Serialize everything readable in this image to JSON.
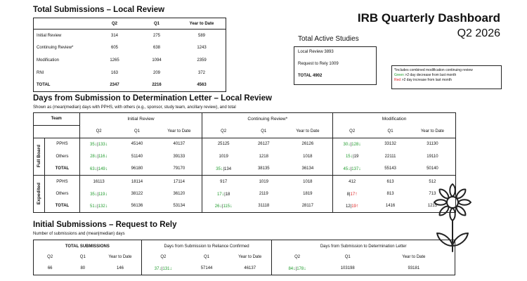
{
  "summary": {
    "title": "Total Submissions – Local Review",
    "cols": [
      "Q2",
      "Q1",
      "Year to Date"
    ],
    "rows": [
      {
        "label": "Initial Review",
        "q2": "314",
        "q1": "275",
        "ytd": "589"
      },
      {
        "label": "Continuing Review*",
        "q2": "605",
        "q1": "638",
        "ytd": "1243"
      },
      {
        "label": "Modification",
        "q2": "1265",
        "q1": "1094",
        "ytd": "2359"
      },
      {
        "label": "RNI",
        "q2": "163",
        "q1": "209",
        "ytd": "372"
      },
      {
        "label": "TOTAL",
        "q2": "2347",
        "q1": "2216",
        "ytd": "4563"
      }
    ]
  },
  "header": {
    "title": "IRB Quarterly Dashboard",
    "subtitle": "Q2 2026"
  },
  "active": {
    "title": "Total Active Studies",
    "lines": [
      "Local Review 3893",
      "Request to Rely 1009",
      "TOTAL  4902"
    ]
  },
  "legend": {
    "note": "*Includes combined modification continuing review",
    "green_word": "Green",
    "green_text": " >2 day decrease from last month",
    "red_word": "Red",
    "red_text": " >2 day increase from last month",
    "green": "#1f9b2c",
    "red": "#dd2222"
  },
  "days": {
    "title": "Days from Submission to Determination Letter – Local Review",
    "subtitle": "Shown as (mean|median) days with PPHS, with others (e.g., sponsor, study team, ancillary review), and total",
    "team_header": "Team",
    "groups": [
      "Initial Review",
      "Continuing Review*",
      "Modification"
    ],
    "cols": [
      "Q2",
      "Q1",
      "Year to Date"
    ],
    "sections": [
      {
        "name": "Full Board",
        "rows": [
          {
            "label": "PPHS",
            "cells": [
              {
                "a": "35",
                "ad": "↓",
                "b": "133",
                "bd": "↓"
              },
              {
                "t": "45140"
              },
              {
                "t": "40137"
              },
              {
                "t": "25125"
              },
              {
                "t": "26127"
              },
              {
                "t": "26126"
              },
              {
                "a": "30",
                "ad": "↓",
                "b": "128",
                "bd": "↓"
              },
              {
                "t": "33132"
              },
              {
                "t": "31130"
              }
            ]
          },
          {
            "label": "Others",
            "cells": [
              {
                "a": "28",
                "ad": "↓",
                "b": "116",
                "bd": "↓"
              },
              {
                "t": "51140"
              },
              {
                "t": "39133"
              },
              {
                "t": "1019"
              },
              {
                "t": "1218"
              },
              {
                "t": "1018"
              },
              {
                "a": "15",
                "ad": "↓",
                "b": "19",
                "bd": ""
              },
              {
                "t": "22111"
              },
              {
                "t": "19110"
              }
            ]
          },
          {
            "label": "TOTAL",
            "cells": [
              {
                "a": "63",
                "ad": "↓",
                "b": "149",
                "bd": "↓"
              },
              {
                "t": "96180"
              },
              {
                "t": "79170"
              },
              {
                "a": "35",
                "ad": "↓",
                "b": "134",
                "bd": ""
              },
              {
                "t": "38135"
              },
              {
                "t": "36134"
              },
              {
                "a": "45",
                "ad": "↓",
                "b": "137",
                "bd": "↓"
              },
              {
                "t": "55143"
              },
              {
                "t": "50140"
              }
            ]
          }
        ]
      },
      {
        "name": "Expedited",
        "rows": [
          {
            "label": "PPHS",
            "cells": [
              {
                "t": "16113"
              },
              {
                "t": "18114"
              },
              {
                "t": "17114"
              },
              {
                "t": "917"
              },
              {
                "t": "1019"
              },
              {
                "t": "1018"
              },
              {
                "t": "412"
              },
              {
                "t": "613"
              },
              {
                "t": "512"
              }
            ]
          },
          {
            "label": "Others",
            "cells": [
              {
                "a": "35",
                "ad": "↓",
                "b": "119",
                "bd": "↓"
              },
              {
                "t": "38122"
              },
              {
                "t": "36120"
              },
              {
                "a": "17",
                "ad": "↓",
                "b": "18",
                "bd": ""
              },
              {
                "t": "2119"
              },
              {
                "t": "1819"
              },
              {
                "a": "8",
                "ad": "",
                "b": "17",
                "bd": "↑",
                "red": true
              },
              {
                "t": "813"
              },
              {
                "t": "713"
              }
            ]
          },
          {
            "label": "TOTAL",
            "cells": [
              {
                "a": "51",
                "ad": "↓",
                "b": "132",
                "bd": "↓"
              },
              {
                "t": "56136"
              },
              {
                "t": "53134"
              },
              {
                "a": "26",
                "ad": "↓",
                "b": "115",
                "bd": "↓"
              },
              {
                "t": "31118"
              },
              {
                "t": "28117"
              },
              {
                "a": "12",
                "ad": "",
                "b": "19",
                "bd": "↑",
                "red": true
              },
              {
                "t": "1416"
              },
              {
                "t": "1215"
              }
            ]
          }
        ]
      }
    ]
  },
  "rely": {
    "title": "Initial Submissions – Request to Rely",
    "subtitle": "Number of submissions and (mean|median) days",
    "groups": [
      "TOTAL SUBMISSIONS",
      "Days from Submission to Reliance Confirmed",
      "Days from Submission to Determination Letter"
    ],
    "cols": [
      "Q2",
      "Q1",
      "Year to Date"
    ],
    "cells": [
      {
        "t": "66"
      },
      {
        "t": "80"
      },
      {
        "t": "146"
      },
      {
        "a": "37",
        "ad": "↓",
        "b": "131",
        "bd": "↓"
      },
      {
        "t": "57144"
      },
      {
        "t": "46137"
      },
      {
        "a": "84",
        "ad": "↓",
        "b": "178",
        "bd": "↓"
      },
      {
        "t": "103198"
      },
      {
        "t": "93181"
      }
    ]
  }
}
